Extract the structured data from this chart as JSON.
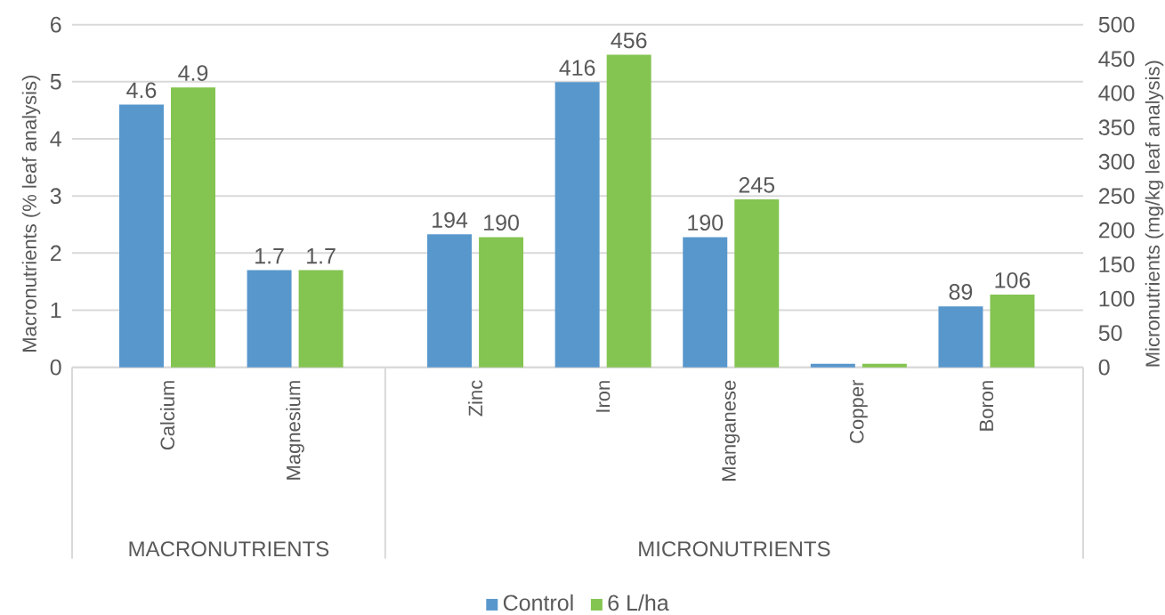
{
  "chart_data": {
    "type": "bar",
    "categories": [
      "Calcium",
      "Magnesium",
      "Zinc",
      "Iron",
      "Manganese",
      "Copper",
      "Boron"
    ],
    "series": [
      {
        "name": "Control",
        "color": "#5897cc",
        "values": [
          4.6,
          1.7,
          null,
          null,
          null,
          null,
          null
        ],
        "value_labels": [
          "4.6",
          "1.7",
          null,
          null,
          null,
          null,
          null
        ]
      },
      {
        "name": "6 L/ha",
        "color": "#84c451",
        "values": [
          4.9,
          1.7,
          null,
          null,
          null,
          null,
          null
        ],
        "value_labels": [
          "4.9",
          "1.7",
          null,
          null,
          null,
          null,
          null
        ]
      },
      {
        "color": "#5897cc",
        "axis": "y2",
        "values": [
          null,
          null,
          194,
          416,
          190,
          5,
          89
        ],
        "value_labels": [
          null,
          null,
          "194",
          "416",
          "190",
          null,
          "89"
        ]
      },
      {
        "color": "#84c451",
        "axis": "y2",
        "values": [
          null,
          null,
          190,
          456,
          245,
          5,
          106
        ],
        "value_labels": [
          null,
          null,
          "190",
          "456",
          "245",
          null,
          "106"
        ]
      }
    ],
    "ylabel": "Macronutrients (% leaf analysis)",
    "y2label": "Micronutrients (mg/kg leaf analysis)",
    "ylim": [
      0,
      6
    ],
    "yticks": [
      0,
      1,
      2,
      3,
      4,
      5,
      6
    ],
    "y2lim": [
      0,
      500
    ],
    "y2ticks": [
      0,
      50,
      100,
      150,
      200,
      250,
      300,
      350,
      400,
      450,
      500
    ],
    "grid": "y",
    "legend": "bottom",
    "annotations": [
      "MACRONUTRIENTS",
      "MICRONUTRIENTS"
    ]
  }
}
